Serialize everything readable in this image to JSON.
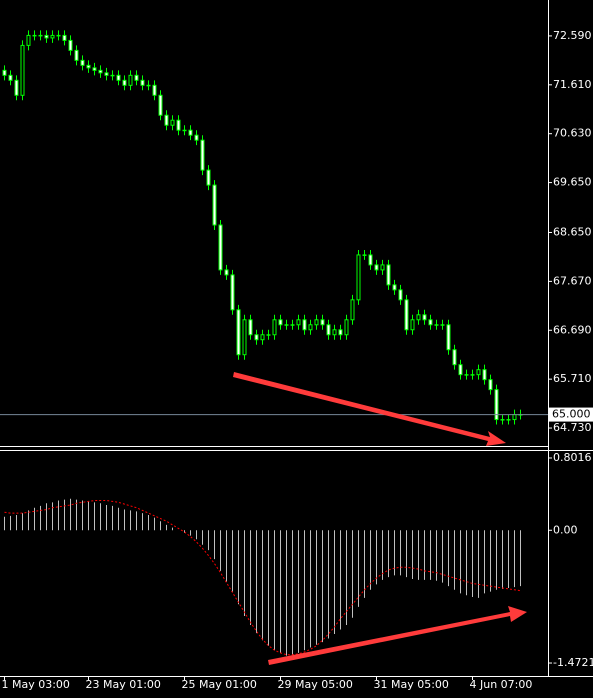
{
  "chart_data": [
    {
      "type": "candlestick",
      "color": "#00ff00",
      "bull_fill": "#000000",
      "bear_fill": "#ffffff",
      "ylim": [
        64.37,
        73.31
      ],
      "yticks": [
        {
          "value": 72.59,
          "label": "72.590"
        },
        {
          "value": 71.61,
          "label": "71.610"
        },
        {
          "value": 70.63,
          "label": "70.630"
        },
        {
          "value": 69.65,
          "label": "69.650"
        },
        {
          "value": 68.65,
          "label": "68.650"
        },
        {
          "value": 67.67,
          "label": "67.670"
        },
        {
          "value": 66.69,
          "label": "66.690"
        },
        {
          "value": 65.71,
          "label": "65.710"
        },
        {
          "value": 64.73,
          "label": "64.730"
        }
      ],
      "price_line": {
        "value": 65.0,
        "label": "65.000"
      },
      "open": [
        71.9,
        71.8,
        71.7,
        71.4,
        72.4,
        72.6,
        72.6,
        72.6,
        72.55,
        72.6,
        72.6,
        72.5,
        72.3,
        72.1,
        72.0,
        71.95,
        71.9,
        71.85,
        71.8,
        71.8,
        71.7,
        71.6,
        71.8,
        71.7,
        71.6,
        71.6,
        71.4,
        71.0,
        70.8,
        70.9,
        70.7,
        70.7,
        70.6,
        70.5,
        69.9,
        69.6,
        68.8,
        67.9,
        67.8,
        67.1,
        66.2,
        66.9,
        66.6,
        66.5,
        66.6,
        66.6,
        66.9,
        66.8,
        66.8,
        66.8,
        66.9,
        66.7,
        66.8,
        66.9,
        66.8,
        66.6,
        66.7,
        66.6,
        66.9,
        67.3,
        68.2,
        68.2,
        68.0,
        67.9,
        68.0,
        67.6,
        67.5,
        67.3,
        66.7,
        66.9,
        67.0,
        66.9,
        66.8,
        66.8,
        66.8,
        66.3,
        66.0,
        65.8,
        65.8,
        65.8,
        65.9,
        65.7,
        65.5,
        64.9,
        64.9,
        64.9,
        65.0
      ],
      "high": [
        72.0,
        71.9,
        71.8,
        72.5,
        72.7,
        72.7,
        72.7,
        72.7,
        72.7,
        72.7,
        72.7,
        72.6,
        72.4,
        72.2,
        72.1,
        72.05,
        72.0,
        71.95,
        71.9,
        71.9,
        71.8,
        71.9,
        71.9,
        71.8,
        71.7,
        71.7,
        71.5,
        71.1,
        71.0,
        71.0,
        70.8,
        70.8,
        70.7,
        70.6,
        70.0,
        69.7,
        68.9,
        68.0,
        67.9,
        67.2,
        67.0,
        67.0,
        66.7,
        66.7,
        66.7,
        67.0,
        67.0,
        66.9,
        66.9,
        67.0,
        67.0,
        66.9,
        67.0,
        67.0,
        66.9,
        66.8,
        66.8,
        67.0,
        67.4,
        68.3,
        68.3,
        68.3,
        68.1,
        68.1,
        68.1,
        67.7,
        67.6,
        67.4,
        67.0,
        67.1,
        67.1,
        67.0,
        66.9,
        66.9,
        66.9,
        66.4,
        66.1,
        65.9,
        65.9,
        66.0,
        66.0,
        65.8,
        65.6,
        65.0,
        65.0,
        65.1,
        65.1
      ],
      "low": [
        71.7,
        71.6,
        71.3,
        71.3,
        72.3,
        72.5,
        72.5,
        72.45,
        72.45,
        72.5,
        72.4,
        72.2,
        72.0,
        71.9,
        71.85,
        71.8,
        71.75,
        71.7,
        71.7,
        71.6,
        71.5,
        71.5,
        71.6,
        71.5,
        71.5,
        71.3,
        70.9,
        70.7,
        70.7,
        70.6,
        70.6,
        70.5,
        70.4,
        69.8,
        69.5,
        68.7,
        67.8,
        67.7,
        67.0,
        66.1,
        66.1,
        66.5,
        66.4,
        66.4,
        66.5,
        66.5,
        66.7,
        66.7,
        66.7,
        66.7,
        66.6,
        66.6,
        66.7,
        66.7,
        66.5,
        66.5,
        66.5,
        66.5,
        66.8,
        67.2,
        68.1,
        67.9,
        67.8,
        67.8,
        67.5,
        67.4,
        67.2,
        66.6,
        66.6,
        66.8,
        66.8,
        66.7,
        66.7,
        66.7,
        66.2,
        65.9,
        65.7,
        65.7,
        65.7,
        65.7,
        65.6,
        65.4,
        64.8,
        64.8,
        64.8,
        64.8,
        64.9
      ],
      "close": [
        71.8,
        71.7,
        71.4,
        72.4,
        72.6,
        72.6,
        72.6,
        72.55,
        72.6,
        72.6,
        72.5,
        72.3,
        72.1,
        72.0,
        71.95,
        71.9,
        71.85,
        71.8,
        71.8,
        71.7,
        71.6,
        71.8,
        71.7,
        71.6,
        71.6,
        71.4,
        71.0,
        70.8,
        70.9,
        70.7,
        70.7,
        70.6,
        70.5,
        69.9,
        69.6,
        68.8,
        67.9,
        67.8,
        67.1,
        66.2,
        66.9,
        66.6,
        66.5,
        66.6,
        66.6,
        66.9,
        66.8,
        66.8,
        66.8,
        66.9,
        66.7,
        66.8,
        66.9,
        66.8,
        66.6,
        66.7,
        66.6,
        66.9,
        67.3,
        68.2,
        68.2,
        68.0,
        67.9,
        68.0,
        67.6,
        67.5,
        67.3,
        66.7,
        66.9,
        67.0,
        66.9,
        66.8,
        66.8,
        66.8,
        66.3,
        66.0,
        65.8,
        65.8,
        65.8,
        65.9,
        65.7,
        65.5,
        64.9,
        64.9,
        64.9,
        65.0,
        65.0
      ]
    },
    {
      "type": "macd",
      "categories": [
        "1 May 03:00",
        null,
        null,
        null,
        null,
        null,
        null,
        null,
        null,
        null,
        null,
        null,
        null,
        null,
        "23 May 01:00",
        null,
        null,
        null,
        null,
        null,
        null,
        null,
        null,
        null,
        null,
        null,
        null,
        null,
        null,
        null,
        "25 May 01:00",
        null,
        null,
        null,
        null,
        null,
        null,
        null,
        null,
        null,
        null,
        null,
        null,
        null,
        null,
        null,
        "29 May 05:00",
        null,
        null,
        null,
        null,
        null,
        null,
        null,
        null,
        null,
        null,
        null,
        null,
        null,
        null,
        null,
        "31 May 05:00",
        null,
        null,
        null,
        null,
        null,
        null,
        null,
        null,
        null,
        null,
        null,
        null,
        null,
        null,
        null,
        "4 Jun 07:00",
        null,
        null,
        null,
        null,
        null,
        null,
        null,
        null
      ],
      "ylim": [
        -1.616,
        0.879
      ],
      "yticks": [
        0.8016,
        {
          "value": 0,
          "label": "0.00"
        },
        -1.4721
      ],
      "histogram_color": "#c0c0c0",
      "signal_color": "#ff0000",
      "histogram": [
        0.15,
        0.16,
        0.17,
        0.19,
        0.22,
        0.25,
        0.27,
        0.3,
        0.31,
        0.33,
        0.34,
        0.35,
        0.34,
        0.33,
        0.32,
        0.31,
        0.3,
        0.28,
        0.27,
        0.25,
        0.23,
        0.22,
        0.21,
        0.19,
        0.17,
        0.14,
        0.1,
        0.06,
        0.03,
        0.0,
        -0.03,
        -0.06,
        -0.1,
        -0.16,
        -0.22,
        -0.32,
        -0.45,
        -0.57,
        -0.68,
        -0.82,
        -0.95,
        -1.05,
        -1.14,
        -1.22,
        -1.28,
        -1.33,
        -1.36,
        -1.39,
        -1.38,
        -1.36,
        -1.33,
        -1.3,
        -1.27,
        -1.24,
        -1.2,
        -1.15,
        -1.1,
        -1.05,
        -0.97,
        -0.85,
        -0.75,
        -0.66,
        -0.6,
        -0.55,
        -0.52,
        -0.5,
        -0.5,
        -0.52,
        -0.54,
        -0.55,
        -0.55,
        -0.55,
        -0.56,
        -0.58,
        -0.62,
        -0.66,
        -0.7,
        -0.72,
        -0.74,
        -0.75,
        -0.7,
        -0.68,
        -0.66,
        -0.65,
        -0.64,
        -0.63,
        -0.62
      ],
      "signal": [
        0.2,
        0.19,
        0.19,
        0.19,
        0.2,
        0.21,
        0.22,
        0.23,
        0.25,
        0.26,
        0.27,
        0.28,
        0.3,
        0.31,
        0.32,
        0.33,
        0.33,
        0.33,
        0.32,
        0.31,
        0.29,
        0.27,
        0.25,
        0.22,
        0.19,
        0.16,
        0.13,
        0.1,
        0.06,
        0.02,
        -0.02,
        -0.07,
        -0.13,
        -0.2,
        -0.28,
        -0.37,
        -0.47,
        -0.58,
        -0.69,
        -0.8,
        -0.91,
        -1.02,
        -1.12,
        -1.21,
        -1.28,
        -1.33,
        -1.36,
        -1.38,
        -1.38,
        -1.37,
        -1.35,
        -1.32,
        -1.28,
        -1.22,
        -1.15,
        -1.07,
        -0.98,
        -0.9,
        -0.82,
        -0.74,
        -0.66,
        -0.59,
        -0.53,
        -0.48,
        -0.44,
        -0.42,
        -0.41,
        -0.41,
        -0.42,
        -0.43,
        -0.45,
        -0.46,
        -0.47,
        -0.49,
        -0.51,
        -0.53,
        -0.55,
        -0.57,
        -0.59,
        -0.6,
        -0.61,
        -0.62,
        -0.63,
        -0.64,
        -0.65,
        -0.66,
        -0.67
      ]
    }
  ]
}
